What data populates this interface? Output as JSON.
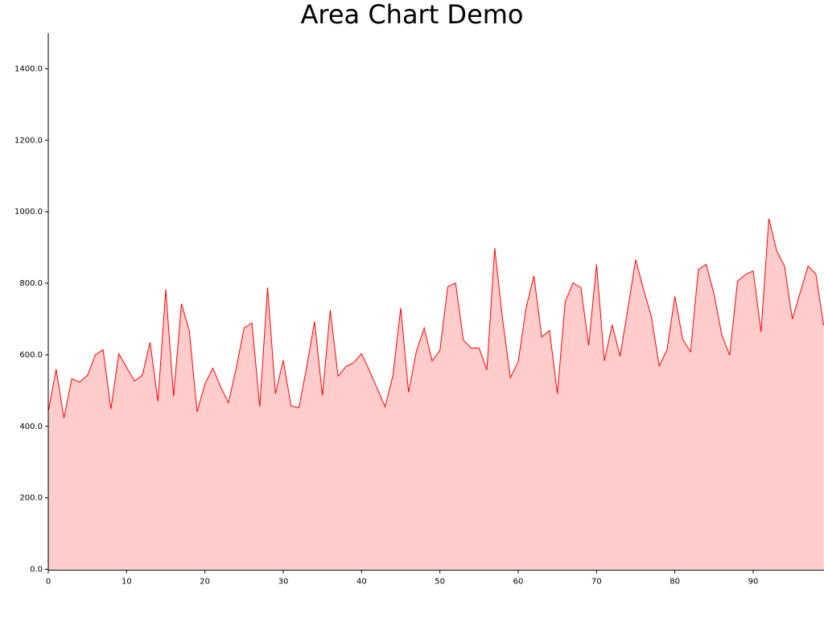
{
  "chart_data": {
    "type": "area",
    "title": "Area Chart Demo",
    "x": [
      0,
      1,
      2,
      3,
      4,
      5,
      6,
      7,
      8,
      9,
      10,
      11,
      12,
      13,
      14,
      15,
      16,
      17,
      18,
      19,
      20,
      21,
      22,
      23,
      24,
      25,
      26,
      27,
      28,
      29,
      30,
      31,
      32,
      33,
      34,
      35,
      36,
      37,
      38,
      39,
      40,
      41,
      42,
      43,
      44,
      45,
      46,
      47,
      48,
      49,
      50,
      51,
      52,
      53,
      54,
      55,
      56,
      57,
      58,
      59,
      60,
      61,
      62,
      63,
      64,
      65,
      66,
      67,
      68,
      69,
      70,
      71,
      72,
      73,
      74,
      75,
      76,
      77,
      78,
      79,
      80,
      81,
      82,
      83,
      84,
      85,
      86,
      87,
      88,
      89,
      90,
      91,
      92,
      93,
      94,
      95,
      96,
      97,
      98,
      99
    ],
    "values": [
      441,
      560,
      423,
      533,
      524,
      542,
      600,
      614,
      448,
      603,
      565,
      527,
      542,
      635,
      470,
      783,
      484,
      743,
      668,
      441,
      518,
      563,
      511,
      466,
      563,
      675,
      689,
      455,
      788,
      491,
      585,
      457,
      452,
      567,
      693,
      486,
      725,
      540,
      567,
      578,
      603,
      556,
      506,
      455,
      542,
      731,
      495,
      610,
      675,
      583,
      612,
      790,
      801,
      641,
      619,
      619,
      558,
      898,
      700,
      536,
      581,
      731,
      821,
      650,
      668,
      491,
      749,
      801,
      788,
      626,
      853,
      583,
      684,
      596,
      729,
      866,
      783,
      707,
      569,
      614,
      763,
      644,
      608,
      839,
      853,
      770,
      655,
      599,
      806,
      824,
      835,
      664,
      981,
      891,
      848,
      700,
      774,
      848,
      826,
      682
    ],
    "color": "#ff0000",
    "fill": "#ffcccc",
    "xlim": [
      0,
      99
    ],
    "xticks": [
      0,
      10,
      20,
      30,
      40,
      50,
      60,
      70,
      80,
      90
    ],
    "ylim": [
      0,
      1500
    ],
    "yticks": [
      {
        "value": 0,
        "label": "0.0"
      },
      {
        "value": 200,
        "label": "200.0"
      },
      {
        "value": 400,
        "label": "400.0"
      },
      {
        "value": 600,
        "label": "600.0"
      },
      {
        "value": 800,
        "label": "800.0"
      },
      {
        "value": 1000,
        "label": "1000.0"
      },
      {
        "value": 1200,
        "label": "1200.0"
      },
      {
        "value": 1400,
        "label": "1400.0"
      }
    ],
    "grid": false
  }
}
